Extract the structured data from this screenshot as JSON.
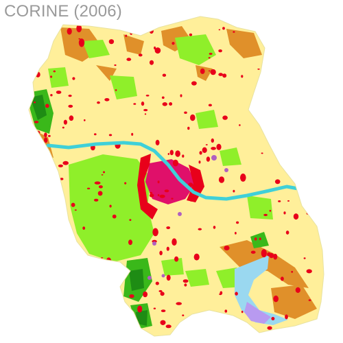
{
  "title": "CORINE (2006)",
  "colors": {
    "background": "#ffffff",
    "agricultural_yellow": "#ffef9a",
    "arable_tan": "#f5e0a0",
    "complex_cultivation_orange": "#e0902a",
    "urban_fabric_red": "#e8001a",
    "continuous_urban_pink": "#e0106a",
    "grassland_light_green": "#8fef2a",
    "forest_green": "#3ab81a",
    "dense_forest_dark_green": "#1e8c14",
    "water_course_cyan": "#3fd0d8",
    "water_body_lightblue": "#9ad8f0",
    "wetland_lavender": "#b89af0",
    "industrial_purple": "#b060c0"
  }
}
